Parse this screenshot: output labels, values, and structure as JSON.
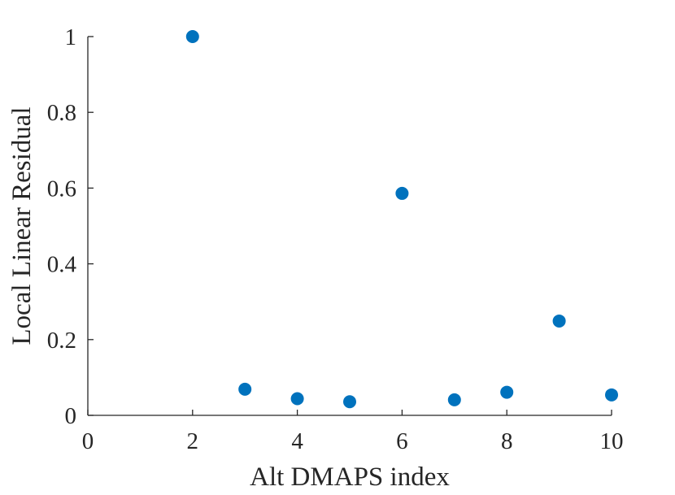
{
  "chart_data": {
    "type": "scatter",
    "title": "",
    "xlabel": "Alt DMAPS index",
    "ylabel": "Local Linear Residual",
    "xlim": [
      0,
      10
    ],
    "ylim": [
      0,
      1
    ],
    "xticks": [
      0,
      2,
      4,
      6,
      8,
      10
    ],
    "xtick_labels": [
      "0",
      "2",
      "4",
      "6",
      "8",
      "10"
    ],
    "yticks": [
      0,
      0.2,
      0.4,
      0.6,
      0.8,
      1
    ],
    "ytick_labels": [
      "0",
      "0.2",
      "0.4",
      "0.6",
      "0.8",
      "1"
    ],
    "grid": false,
    "legend": false,
    "marker_color": "#0072BD",
    "series": [
      {
        "points": [
          {
            "x": 2,
            "y": 1.0
          },
          {
            "x": 3,
            "y": 0.069
          },
          {
            "x": 4,
            "y": 0.044
          },
          {
            "x": 5,
            "y": 0.036
          },
          {
            "x": 6,
            "y": 0.586
          },
          {
            "x": 7,
            "y": 0.041
          },
          {
            "x": 8,
            "y": 0.061
          },
          {
            "x": 9,
            "y": 0.249
          },
          {
            "x": 10,
            "y": 0.054
          }
        ]
      }
    ]
  }
}
